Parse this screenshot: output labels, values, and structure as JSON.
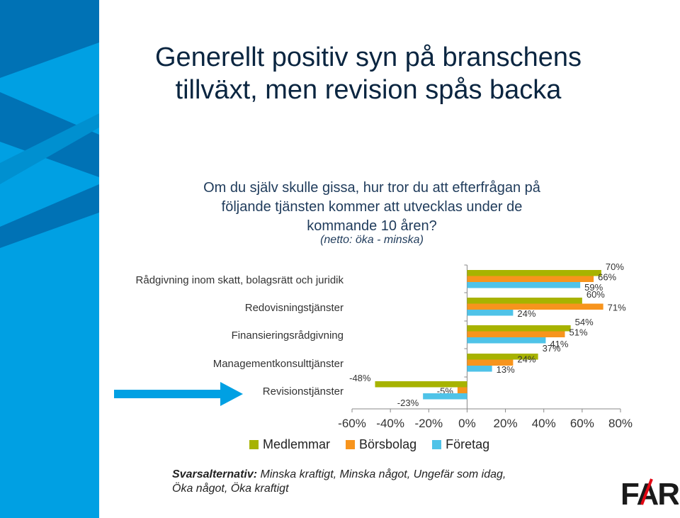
{
  "slide": {
    "title_line1": "Generellt positiv syn på branschens",
    "title_line2": "tillväxt, men revision spås backa",
    "question_line1": "Om du själv skulle gissa, hur tror du att efterfrågan på",
    "question_line2": "följande tjänsten kommer att utvecklas under de",
    "question_line3": "kommande 10 åren?",
    "netto": "(netto: öka - minska)",
    "footnote_label": "Svarsalternativ:",
    "footnote_text1": " Minska kraftigt, Minska något, Ungefär som idag,",
    "footnote_text2": "Öka något, Öka kraftigt",
    "logo_text": "FAR"
  },
  "colors": {
    "accent_blue": "#00a0e3",
    "dark_blue": "#0072b5",
    "medlemmar": "#a7b300",
    "borsbolag": "#f7941d",
    "foretag": "#4fc3e8"
  },
  "chart_data": {
    "type": "bar",
    "orientation": "horizontal",
    "categories": [
      "Rådgivning inom skatt, bolagsrätt och juridik",
      "Redovisningstjänster",
      "Finansieringsrådgivning",
      "Managementkonsulttjänster",
      "Revisionstjänster"
    ],
    "series": [
      {
        "name": "Medlemmar",
        "color": "#a7b300",
        "values": [
          70,
          60,
          54,
          37,
          -48
        ]
      },
      {
        "name": "Börsbolag",
        "color": "#f7941d",
        "values": [
          66,
          71,
          51,
          24,
          -5
        ]
      },
      {
        "name": "Företag",
        "color": "#4fc3e8",
        "values": [
          59,
          24,
          41,
          13,
          -23
        ]
      }
    ],
    "data_labels": [
      [
        "70%",
        "60%",
        "54%",
        "37%",
        "-48%"
      ],
      [
        "66%",
        "71%",
        "51%",
        "24%",
        "-5%"
      ],
      [
        "59%",
        "24%",
        "41%",
        "13%",
        "-23%"
      ]
    ],
    "xlim": [
      -60,
      80
    ],
    "xticks": [
      -60,
      -40,
      -20,
      0,
      20,
      40,
      60,
      80
    ],
    "xtick_labels": [
      "-60%",
      "-40%",
      "-20%",
      "0%",
      "20%",
      "40%",
      "60%",
      "80%"
    ],
    "legend": [
      "Medlemmar",
      "Börsbolag",
      "Företag"
    ],
    "legend_position": "bottom",
    "highlighted_category": "Revisionstjänster",
    "grid": false
  }
}
